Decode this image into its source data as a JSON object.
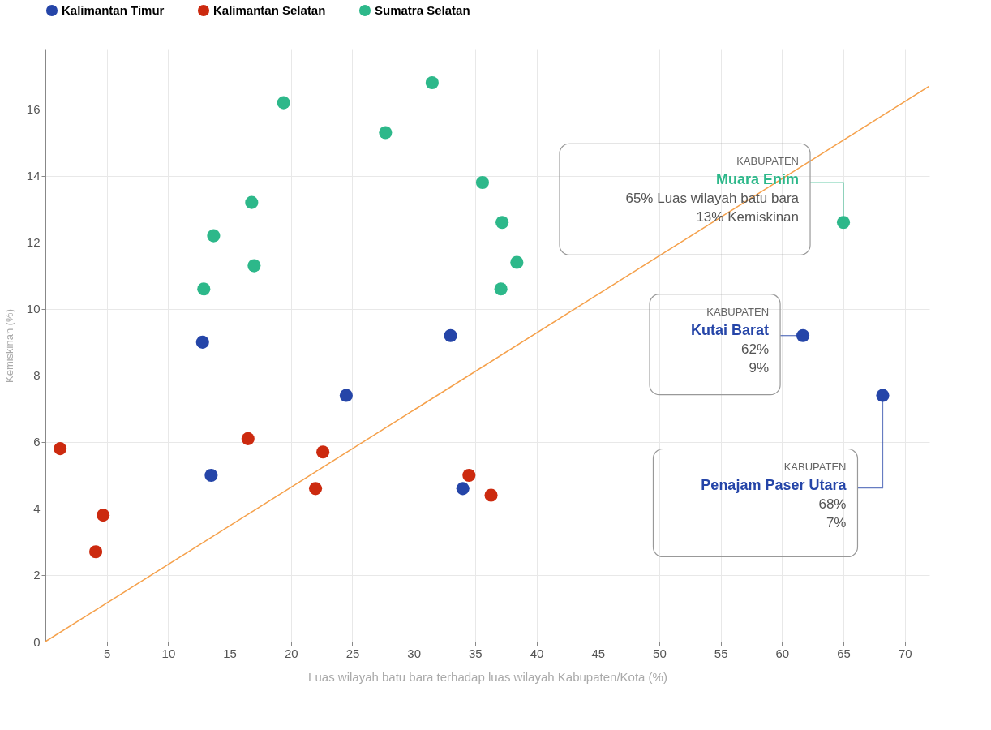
{
  "chart_data": {
    "type": "scatter",
    "xlabel": "Luas wilayah batu bara terhadap luas wilayah Kabupaten/Kota (%)",
    "ylabel": "Kemiskinan (%)",
    "xlim": [
      0,
      72
    ],
    "xticks": [
      5,
      10,
      15,
      20,
      25,
      30,
      35,
      40,
      45,
      50,
      55,
      60,
      65,
      70
    ],
    "ylim": [
      0,
      17.8
    ],
    "yticks": [
      0,
      2,
      4,
      6,
      8,
      10,
      12,
      14,
      16
    ],
    "grid": true,
    "legend": "top",
    "marker": "circle",
    "series": [
      {
        "name": "Kalimantan Timur",
        "color": "#2545a8",
        "x": [
          12.8,
          33.0,
          24.5,
          13.5,
          34.0,
          61.7,
          68.2
        ],
        "values": [
          9.0,
          9.2,
          7.4,
          5.0,
          4.6,
          9.2,
          7.4
        ]
      },
      {
        "name": "Kalimantan Selatan",
        "color": "#cc2a0f",
        "x": [
          1.2,
          16.5,
          22.6,
          22.0,
          4.7,
          4.1,
          34.5,
          36.3
        ],
        "values": [
          5.8,
          6.1,
          5.7,
          4.6,
          3.8,
          2.7,
          5.0,
          4.4
        ]
      },
      {
        "name": "Sumatra Selatan",
        "color": "#2db88a",
        "x": [
          19.4,
          31.5,
          27.7,
          35.6,
          16.8,
          13.7,
          37.2,
          17.0,
          38.4,
          12.9,
          37.1,
          65.0
        ],
        "values": [
          16.2,
          16.8,
          15.3,
          13.8,
          13.2,
          12.2,
          12.6,
          11.3,
          11.4,
          10.6,
          10.6,
          12.6
        ]
      },
      {
        "type": "line",
        "marker": "none",
        "color": "#f5a04a",
        "x": [
          0,
          72
        ],
        "values": [
          0,
          16.7
        ]
      }
    ],
    "annotations": [
      {
        "text": "KABUPATEN\nMuara Enim\n65% Luas wilayah batu bara\n13% Kemiskinan",
        "x": 65.0,
        "y": 12.6
      },
      {
        "text": "KABUPATEN\nKutai Barat\n62%\n9%",
        "x": 61.7,
        "y": 9.2
      },
      {
        "text": "KABUPATEN\nPenajam Paser Utara\n68%\n7%",
        "x": 68.2,
        "y": 7.4
      }
    ]
  }
}
